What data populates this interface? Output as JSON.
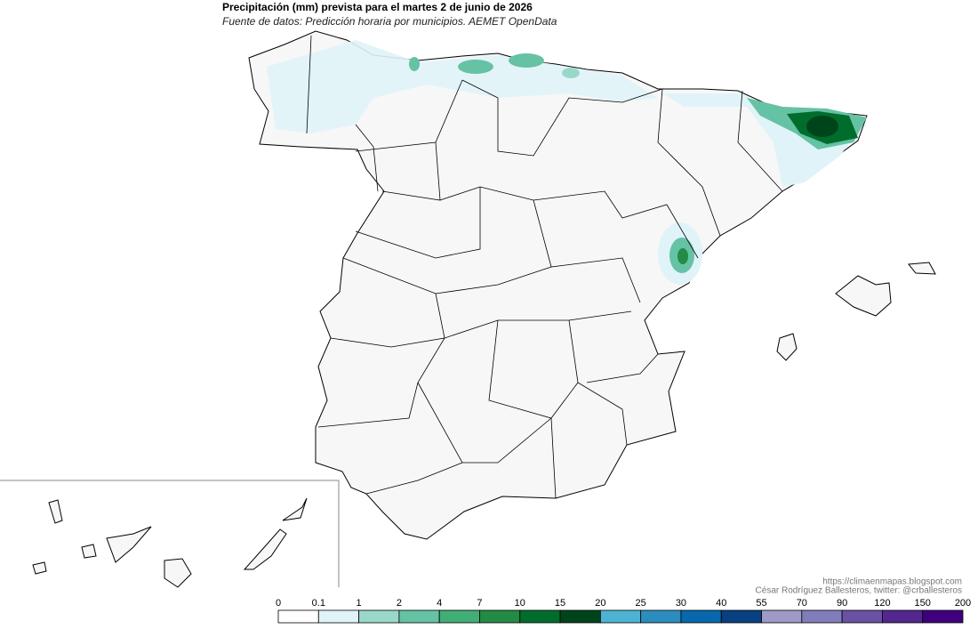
{
  "header": {
    "title": "Precipitación (mm) prevista para el martes 2 de junio de 2026",
    "subtitle": "Fuente de datos: Predicción horaria por municipios. AEMET OpenData"
  },
  "credits": {
    "url": "https://climaenmapas.blogspot.com",
    "author": "César Rodríguez Ballesteros, twitter: @crballesteros"
  },
  "legend": {
    "breaks": [
      0,
      0.1,
      1,
      2,
      4,
      7,
      10,
      15,
      20,
      25,
      30,
      40,
      55,
      70,
      90,
      120,
      150,
      200
    ],
    "colors": [
      "#ffffff",
      "#e0f3f8",
      "#99d8c9",
      "#66c2a4",
      "#41ae76",
      "#238b45",
      "#006d2c",
      "#00441b",
      "#4eb3d3",
      "#2b8cbe",
      "#0868ac",
      "#084081",
      "#9e9ac8",
      "#807dba",
      "#6a51a3",
      "#54278f",
      "#3f007d"
    ]
  }
}
